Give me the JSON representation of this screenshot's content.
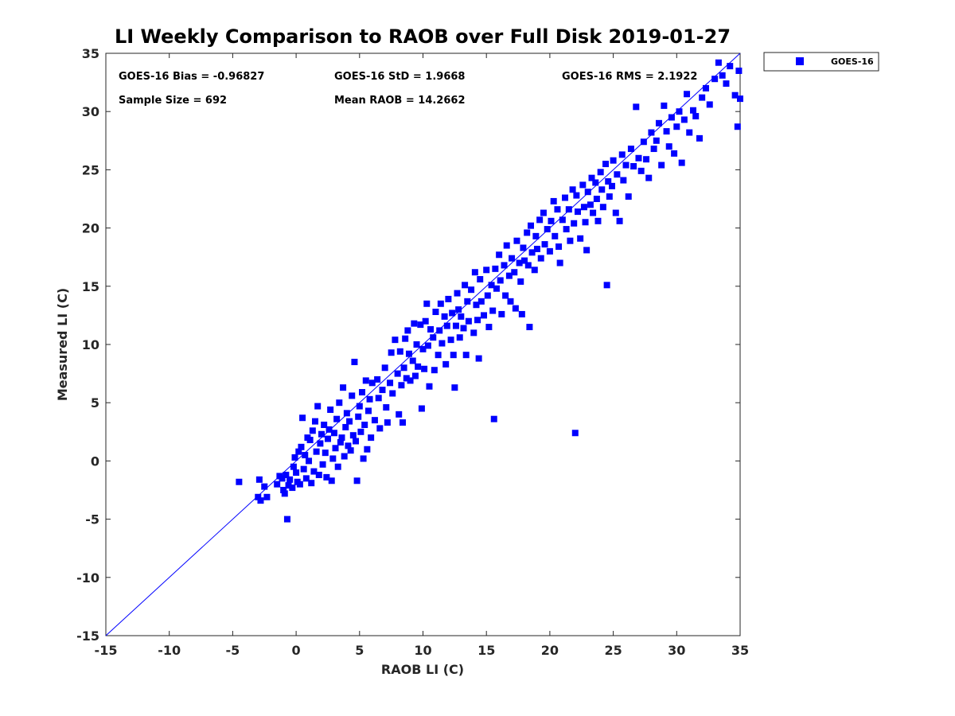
{
  "chart_data": {
    "type": "scatter",
    "title": "LI Weekly Comparison to RAOB over Full Disk 2019-01-27",
    "xlabel": "RAOB LI (C)",
    "ylabel": "Measured LI (C)",
    "xlim": [
      -15,
      35
    ],
    "ylim": [
      -15,
      35
    ],
    "xticks": [
      -15,
      -10,
      -5,
      0,
      5,
      10,
      15,
      20,
      25,
      30,
      35
    ],
    "yticks": [
      -15,
      -10,
      -5,
      0,
      5,
      10,
      15,
      20,
      25,
      30,
      35
    ],
    "reference_line": {
      "from": [
        -15,
        -15
      ],
      "to": [
        35,
        35
      ],
      "color": "#0000ff"
    },
    "legend": {
      "entries": [
        "GOES-16"
      ],
      "placement": "outside-top-right"
    },
    "stats": {
      "bias": "GOES-16 Bias = -0.96827",
      "std": "GOES-16 StD = 1.9668",
      "rms": "GOES-16 RMS = 2.1922",
      "sample": "Sample Size = 692",
      "mean": "Mean RAOB = 14.2662"
    },
    "series": [
      {
        "name": "GOES-16",
        "color": "#0000ff",
        "marker": "square",
        "points": [
          [
            -4.5,
            -1.8
          ],
          [
            -3.0,
            -3.1
          ],
          [
            -2.8,
            -3.4
          ],
          [
            -2.9,
            -1.6
          ],
          [
            -2.5,
            -2.2
          ],
          [
            -2.3,
            -3.1
          ],
          [
            -1.5,
            -2.0
          ],
          [
            -1.3,
            -1.3
          ],
          [
            -1.1,
            -1.5
          ],
          [
            -1.0,
            -2.5
          ],
          [
            -0.9,
            -2.8
          ],
          [
            -0.8,
            -1.2
          ],
          [
            -0.7,
            -5.0
          ],
          [
            -0.6,
            -2.1
          ],
          [
            -0.5,
            -1.6
          ],
          [
            -0.3,
            -2.3
          ],
          [
            -0.2,
            -0.5
          ],
          [
            -0.1,
            0.3
          ],
          [
            0.0,
            -1.0
          ],
          [
            0.1,
            -1.8
          ],
          [
            0.2,
            0.8
          ],
          [
            0.3,
            -2.0
          ],
          [
            0.4,
            1.2
          ],
          [
            0.5,
            3.7
          ],
          [
            0.6,
            -0.7
          ],
          [
            0.7,
            0.5
          ],
          [
            0.8,
            -1.5
          ],
          [
            0.9,
            2.0
          ],
          [
            1.0,
            0.0
          ],
          [
            1.1,
            1.8
          ],
          [
            1.2,
            -1.9
          ],
          [
            1.3,
            2.6
          ],
          [
            1.4,
            -0.9
          ],
          [
            1.5,
            3.4
          ],
          [
            1.6,
            0.8
          ],
          [
            1.7,
            4.7
          ],
          [
            1.8,
            -1.2
          ],
          [
            1.9,
            1.5
          ],
          [
            2.0,
            2.3
          ],
          [
            2.1,
            -0.3
          ],
          [
            2.2,
            3.1
          ],
          [
            2.3,
            0.7
          ],
          [
            2.4,
            -1.4
          ],
          [
            2.5,
            1.9
          ],
          [
            2.6,
            2.7
          ],
          [
            2.7,
            4.4
          ],
          [
            2.8,
            -1.7
          ],
          [
            2.9,
            0.2
          ],
          [
            3.0,
            2.4
          ],
          [
            3.1,
            1.1
          ],
          [
            3.2,
            3.6
          ],
          [
            3.3,
            -0.5
          ],
          [
            3.4,
            5.0
          ],
          [
            3.5,
            1.6
          ],
          [
            3.6,
            2.0
          ],
          [
            3.7,
            6.3
          ],
          [
            3.8,
            0.4
          ],
          [
            3.9,
            2.9
          ],
          [
            4.0,
            4.1
          ],
          [
            4.1,
            1.3
          ],
          [
            4.2,
            3.4
          ],
          [
            4.3,
            0.9
          ],
          [
            4.4,
            5.6
          ],
          [
            4.5,
            2.2
          ],
          [
            4.6,
            8.5
          ],
          [
            4.7,
            1.7
          ],
          [
            4.8,
            -1.7
          ],
          [
            4.9,
            3.8
          ],
          [
            5.0,
            4.7
          ],
          [
            5.1,
            2.5
          ],
          [
            5.2,
            5.9
          ],
          [
            5.3,
            0.2
          ],
          [
            5.4,
            3.1
          ],
          [
            5.5,
            6.9
          ],
          [
            5.6,
            1.0
          ],
          [
            5.7,
            4.3
          ],
          [
            5.8,
            5.3
          ],
          [
            5.9,
            2.0
          ],
          [
            6.0,
            6.7
          ],
          [
            6.2,
            3.5
          ],
          [
            6.4,
            7.0
          ],
          [
            6.5,
            5.4
          ],
          [
            6.6,
            2.8
          ],
          [
            6.8,
            6.1
          ],
          [
            7.0,
            8.0
          ],
          [
            7.1,
            4.6
          ],
          [
            7.2,
            3.3
          ],
          [
            7.4,
            6.7
          ],
          [
            7.5,
            9.3
          ],
          [
            7.6,
            5.8
          ],
          [
            7.8,
            10.4
          ],
          [
            8.0,
            7.5
          ],
          [
            8.1,
            4.0
          ],
          [
            8.2,
            9.4
          ],
          [
            8.3,
            6.5
          ],
          [
            8.4,
            3.3
          ],
          [
            8.5,
            8.0
          ],
          [
            8.6,
            10.5
          ],
          [
            8.7,
            7.1
          ],
          [
            8.8,
            11.2
          ],
          [
            8.9,
            9.2
          ],
          [
            9.0,
            6.9
          ],
          [
            9.2,
            8.6
          ],
          [
            9.3,
            11.8
          ],
          [
            9.4,
            7.3
          ],
          [
            9.5,
            10.0
          ],
          [
            9.6,
            8.1
          ],
          [
            9.8,
            11.7
          ],
          [
            9.9,
            4.5
          ],
          [
            10.0,
            9.6
          ],
          [
            10.1,
            7.9
          ],
          [
            10.2,
            12.0
          ],
          [
            10.3,
            13.5
          ],
          [
            10.4,
            9.9
          ],
          [
            10.5,
            6.4
          ],
          [
            10.6,
            11.3
          ],
          [
            10.8,
            10.6
          ],
          [
            10.9,
            7.8
          ],
          [
            11.0,
            12.8
          ],
          [
            11.2,
            9.1
          ],
          [
            11.3,
            11.2
          ],
          [
            11.4,
            13.5
          ],
          [
            11.5,
            10.1
          ],
          [
            11.7,
            12.4
          ],
          [
            11.8,
            8.3
          ],
          [
            11.9,
            11.6
          ],
          [
            12.0,
            13.9
          ],
          [
            12.2,
            10.4
          ],
          [
            12.3,
            12.7
          ],
          [
            12.4,
            9.1
          ],
          [
            12.5,
            6.3
          ],
          [
            12.6,
            11.6
          ],
          [
            12.7,
            14.4
          ],
          [
            12.8,
            13.0
          ],
          [
            12.9,
            10.6
          ],
          [
            13.0,
            12.4
          ],
          [
            13.2,
            11.4
          ],
          [
            13.3,
            15.1
          ],
          [
            13.4,
            9.1
          ],
          [
            13.5,
            13.7
          ],
          [
            13.6,
            12.0
          ],
          [
            13.8,
            14.7
          ],
          [
            14.0,
            11.0
          ],
          [
            14.1,
            16.2
          ],
          [
            14.2,
            13.4
          ],
          [
            14.3,
            12.1
          ],
          [
            14.4,
            8.8
          ],
          [
            14.5,
            15.6
          ],
          [
            14.6,
            13.7
          ],
          [
            14.8,
            12.5
          ],
          [
            15.0,
            16.4
          ],
          [
            15.1,
            14.2
          ],
          [
            15.2,
            11.5
          ],
          [
            15.4,
            15.1
          ],
          [
            15.5,
            12.9
          ],
          [
            15.6,
            3.6
          ],
          [
            15.7,
            16.5
          ],
          [
            15.8,
            14.8
          ],
          [
            16.0,
            17.7
          ],
          [
            16.1,
            15.5
          ],
          [
            16.2,
            12.6
          ],
          [
            16.4,
            16.8
          ],
          [
            16.5,
            14.2
          ],
          [
            16.6,
            18.5
          ],
          [
            16.8,
            15.9
          ],
          [
            16.9,
            13.7
          ],
          [
            17.0,
            17.4
          ],
          [
            17.2,
            16.2
          ],
          [
            17.3,
            13.1
          ],
          [
            17.4,
            18.9
          ],
          [
            17.6,
            17.0
          ],
          [
            17.7,
            15.4
          ],
          [
            17.8,
            12.6
          ],
          [
            17.9,
            18.3
          ],
          [
            18.0,
            17.2
          ],
          [
            18.2,
            19.6
          ],
          [
            18.3,
            16.8
          ],
          [
            18.4,
            11.5
          ],
          [
            18.5,
            20.2
          ],
          [
            18.6,
            17.9
          ],
          [
            18.8,
            16.4
          ],
          [
            18.9,
            19.3
          ],
          [
            19.0,
            18.2
          ],
          [
            19.2,
            20.7
          ],
          [
            19.3,
            17.4
          ],
          [
            19.5,
            21.3
          ],
          [
            19.6,
            18.6
          ],
          [
            19.8,
            19.9
          ],
          [
            20.0,
            18.0
          ],
          [
            20.1,
            20.6
          ],
          [
            20.3,
            22.3
          ],
          [
            20.4,
            19.3
          ],
          [
            20.6,
            21.6
          ],
          [
            20.7,
            18.4
          ],
          [
            20.8,
            17.0
          ],
          [
            21.0,
            20.7
          ],
          [
            21.2,
            22.6
          ],
          [
            21.3,
            19.9
          ],
          [
            21.5,
            21.6
          ],
          [
            21.6,
            18.9
          ],
          [
            21.8,
            23.3
          ],
          [
            21.9,
            20.4
          ],
          [
            22.0,
            2.4
          ],
          [
            22.1,
            22.8
          ],
          [
            22.2,
            21.4
          ],
          [
            22.4,
            19.1
          ],
          [
            22.6,
            23.7
          ],
          [
            22.7,
            21.8
          ],
          [
            22.8,
            20.5
          ],
          [
            22.9,
            18.1
          ],
          [
            23.0,
            23.1
          ],
          [
            23.2,
            22.0
          ],
          [
            23.3,
            24.3
          ],
          [
            23.4,
            21.3
          ],
          [
            23.6,
            23.9
          ],
          [
            23.7,
            22.5
          ],
          [
            23.8,
            20.6
          ],
          [
            24.0,
            24.8
          ],
          [
            24.1,
            23.3
          ],
          [
            24.2,
            21.8
          ],
          [
            24.4,
            25.5
          ],
          [
            24.5,
            15.1
          ],
          [
            24.6,
            24.0
          ],
          [
            24.7,
            22.7
          ],
          [
            24.9,
            23.6
          ],
          [
            25.0,
            25.8
          ],
          [
            25.2,
            21.3
          ],
          [
            25.3,
            24.6
          ],
          [
            25.5,
            20.6
          ],
          [
            25.7,
            26.3
          ],
          [
            25.8,
            24.1
          ],
          [
            26.0,
            25.4
          ],
          [
            26.2,
            22.7
          ],
          [
            26.4,
            26.8
          ],
          [
            26.6,
            25.3
          ],
          [
            26.8,
            30.4
          ],
          [
            27.0,
            26.0
          ],
          [
            27.2,
            24.9
          ],
          [
            27.4,
            27.4
          ],
          [
            27.6,
            25.9
          ],
          [
            27.8,
            24.3
          ],
          [
            28.0,
            28.2
          ],
          [
            28.2,
            26.8
          ],
          [
            28.4,
            27.5
          ],
          [
            28.6,
            29.0
          ],
          [
            28.8,
            25.4
          ],
          [
            29.0,
            30.5
          ],
          [
            29.2,
            28.3
          ],
          [
            29.4,
            27.0
          ],
          [
            29.6,
            29.5
          ],
          [
            29.8,
            26.4
          ],
          [
            30.0,
            28.7
          ],
          [
            30.2,
            30.0
          ],
          [
            30.4,
            25.6
          ],
          [
            30.6,
            29.3
          ],
          [
            30.8,
            31.5
          ],
          [
            31.0,
            28.2
          ],
          [
            31.3,
            30.1
          ],
          [
            31.5,
            29.6
          ],
          [
            31.8,
            27.7
          ],
          [
            32.0,
            31.2
          ],
          [
            32.3,
            32.0
          ],
          [
            32.6,
            30.6
          ],
          [
            33.0,
            32.8
          ],
          [
            33.3,
            34.2
          ],
          [
            33.6,
            33.1
          ],
          [
            33.9,
            32.4
          ],
          [
            34.2,
            33.9
          ],
          [
            34.6,
            31.4
          ],
          [
            34.8,
            28.7
          ],
          [
            34.9,
            33.5
          ],
          [
            35.0,
            31.1
          ]
        ]
      }
    ]
  }
}
